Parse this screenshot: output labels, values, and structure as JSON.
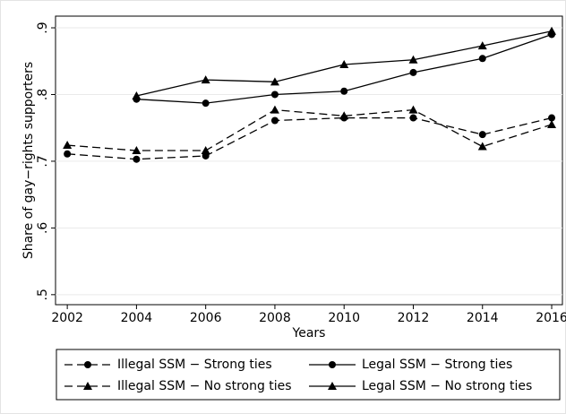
{
  "chart_data": {
    "type": "line",
    "x": [
      2002,
      2004,
      2006,
      2008,
      2010,
      2012,
      2014,
      2016
    ],
    "xlim": [
      2001.66,
      2016.31
    ],
    "xticks": [
      2002,
      2004,
      2006,
      2008,
      2010,
      2012,
      2014,
      2016
    ],
    "ylim": [
      0.485,
      0.9175
    ],
    "yticks": [
      {
        "value": 0.5,
        "label": ".5"
      },
      {
        "value": 0.6,
        "label": ".6"
      },
      {
        "value": 0.7,
        "label": ".7"
      },
      {
        "value": 0.8,
        "label": ".8"
      },
      {
        "value": 0.9,
        "label": ".9"
      }
    ],
    "grid": true,
    "x_label": "Years",
    "y_label": "Share of gay−rights supporters",
    "series": [
      {
        "name": "Illegal SSM − Strong ties",
        "color": "#000000",
        "line_style": "dashed",
        "marker": "circle",
        "values": [
          0.711,
          0.703,
          0.708,
          0.761,
          0.765,
          0.765,
          0.74,
          0.765
        ]
      },
      {
        "name": "Legal SSM − Strong ties",
        "color": "#000000",
        "line_style": "solid",
        "marker": "circle",
        "values": [
          null,
          0.793,
          0.787,
          0.8,
          0.805,
          0.833,
          0.854,
          0.89
        ]
      },
      {
        "name": "Illegal SSM − No strong ties",
        "color": "#000000",
        "line_style": "dashed",
        "marker": "triangle",
        "values": [
          0.724,
          0.716,
          0.716,
          0.777,
          0.768,
          0.777,
          0.722,
          0.755
        ]
      },
      {
        "name": "Legal SSM − No strong ties",
        "color": "#000000",
        "line_style": "solid",
        "marker": "triangle",
        "values": [
          null,
          0.798,
          0.822,
          0.819,
          0.845,
          0.852,
          0.873,
          0.895
        ]
      }
    ]
  }
}
